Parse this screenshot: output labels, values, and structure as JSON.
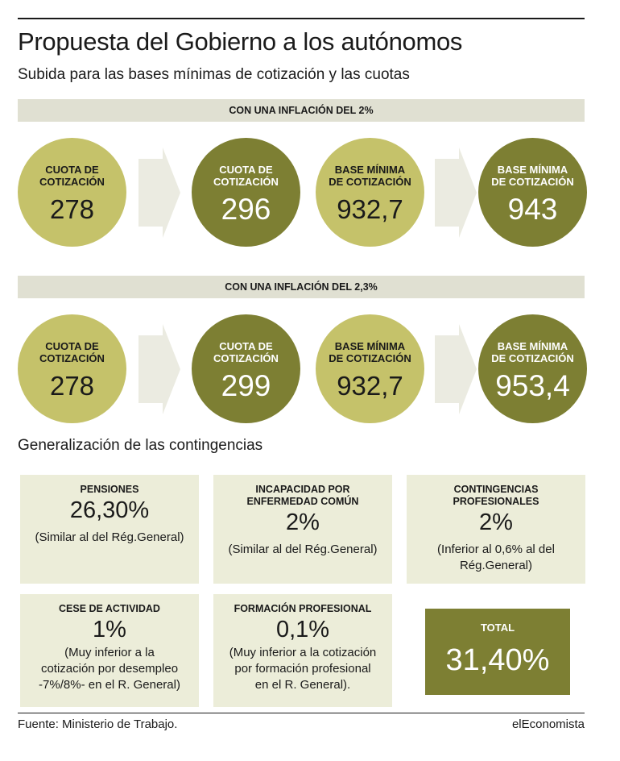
{
  "header": {
    "title": "Propuesta del Gobierno a los autónomos",
    "subtitle": "Subida para las bases mínimas de cotización y las cuotas"
  },
  "scenarios": [
    {
      "band_label": "CON UNA INFLACIÓN DEL 2%",
      "cuota_label": "CUOTA DE\nCOTIZACIÓN",
      "cuota_from": "278",
      "cuota_to": "296",
      "base_label": "BASE MÍNIMA\nDE COTIZACIÓN",
      "base_from": "932,7",
      "base_to": "943"
    },
    {
      "band_label": "CON UNA INFLACIÓN DEL 2,3%",
      "cuota_label": "CUOTA DE\nCOTIZACIÓN",
      "cuota_from": "278",
      "cuota_to": "299",
      "base_label": "BASE MÍNIMA\nDE COTIZACIÓN",
      "base_from": "932,7",
      "base_to": "953,4"
    }
  ],
  "contingencies": {
    "title": "Generalización de las contingencias",
    "items": [
      {
        "label": "PENSIONES",
        "value": "26,30%",
        "note": "(Similar al del Rég.General)"
      },
      {
        "label": "INCAPACIDAD POR\nENFERMEDAD COMÚN",
        "value": "2%",
        "note": "(Similar al del Rég.General)"
      },
      {
        "label": "CONTINGENCIAS\nPROFESIONALES",
        "value": "2%",
        "note": "(Inferior al 0,6% al del\nRég.General)"
      },
      {
        "label": "CESE DE ACTIVIDAD",
        "value": "1%",
        "note": "(Muy inferior a la\ncotización por desempleo\n-7%/8%- en el R. General)"
      },
      {
        "label": "FORMACIÓN PROFESIONAL",
        "value": "0,1%",
        "note": "(Muy inferior a la cotización\npor formación profesional\nen el R. General)."
      }
    ],
    "total": {
      "label": "TOTAL",
      "value": "31,40%"
    }
  },
  "footer": {
    "source": "Fuente: Ministerio de Trabajo.",
    "brand": "elEconomista"
  },
  "colors": {
    "light_olive": "#c5c26a",
    "dark_olive": "#7d7f33",
    "band_gray": "#e0e0d2",
    "box_beige": "#ecedd9",
    "arrow_gray": "#ebebe1"
  }
}
